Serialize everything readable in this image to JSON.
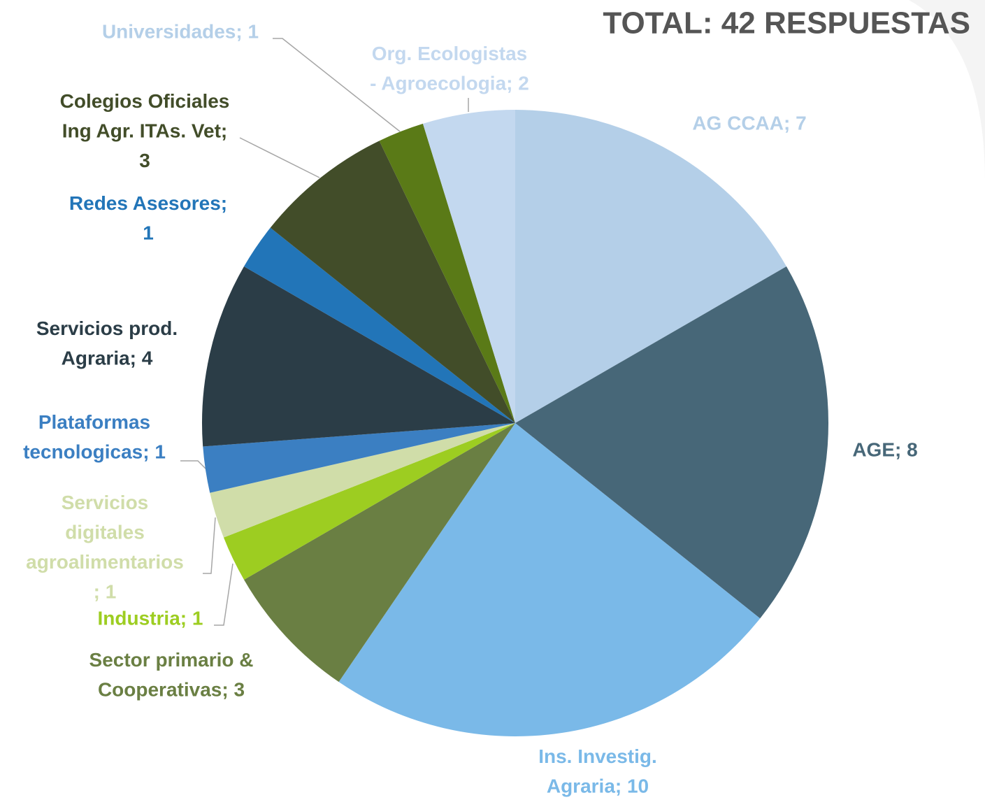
{
  "chart_data": {
    "type": "pie",
    "title": "TOTAL: 42 RESPUESTAS",
    "values": [
      7,
      8,
      10,
      3,
      1,
      1,
      1,
      4,
      1,
      3,
      1,
      2
    ],
    "value_labels": [
      "AG CCAA; 7",
      "AGE; 8",
      "Ins. Investig. Agraria; 10",
      "Sector primario & Cooperativas; 3",
      "Industria; 1",
      "Servicios digitales agroalimentarios; 1",
      "Plataformas tecnologicas; 1",
      "Servicios prod. Agraria; 4",
      "Redes Asesores; 1",
      "Colegios Oficiales Ing Agr. ITAs. Vet; 3",
      "Universidades; 1",
      "Org. Ecologistas - Agroecologia; 2"
    ],
    "colors": [
      "#b4cfe8",
      "#476778",
      "#7ab9e8",
      "#6a7f43",
      "#9dcd21",
      "#d0dda9",
      "#3b7fc2",
      "#2b3d47",
      "#2275b8",
      "#424d29",
      "#5a7a17",
      "#c3d8ef"
    ],
    "label_colors": [
      "#b4cfe8",
      "#476778",
      "#7ab9e8",
      "#6a7f43",
      "#9dcd21",
      "#d0dda9",
      "#3b7fc2",
      "#2b3d47",
      "#2275b8",
      "#424d29",
      "#b4cfe8",
      "#c3d8ef"
    ]
  }
}
